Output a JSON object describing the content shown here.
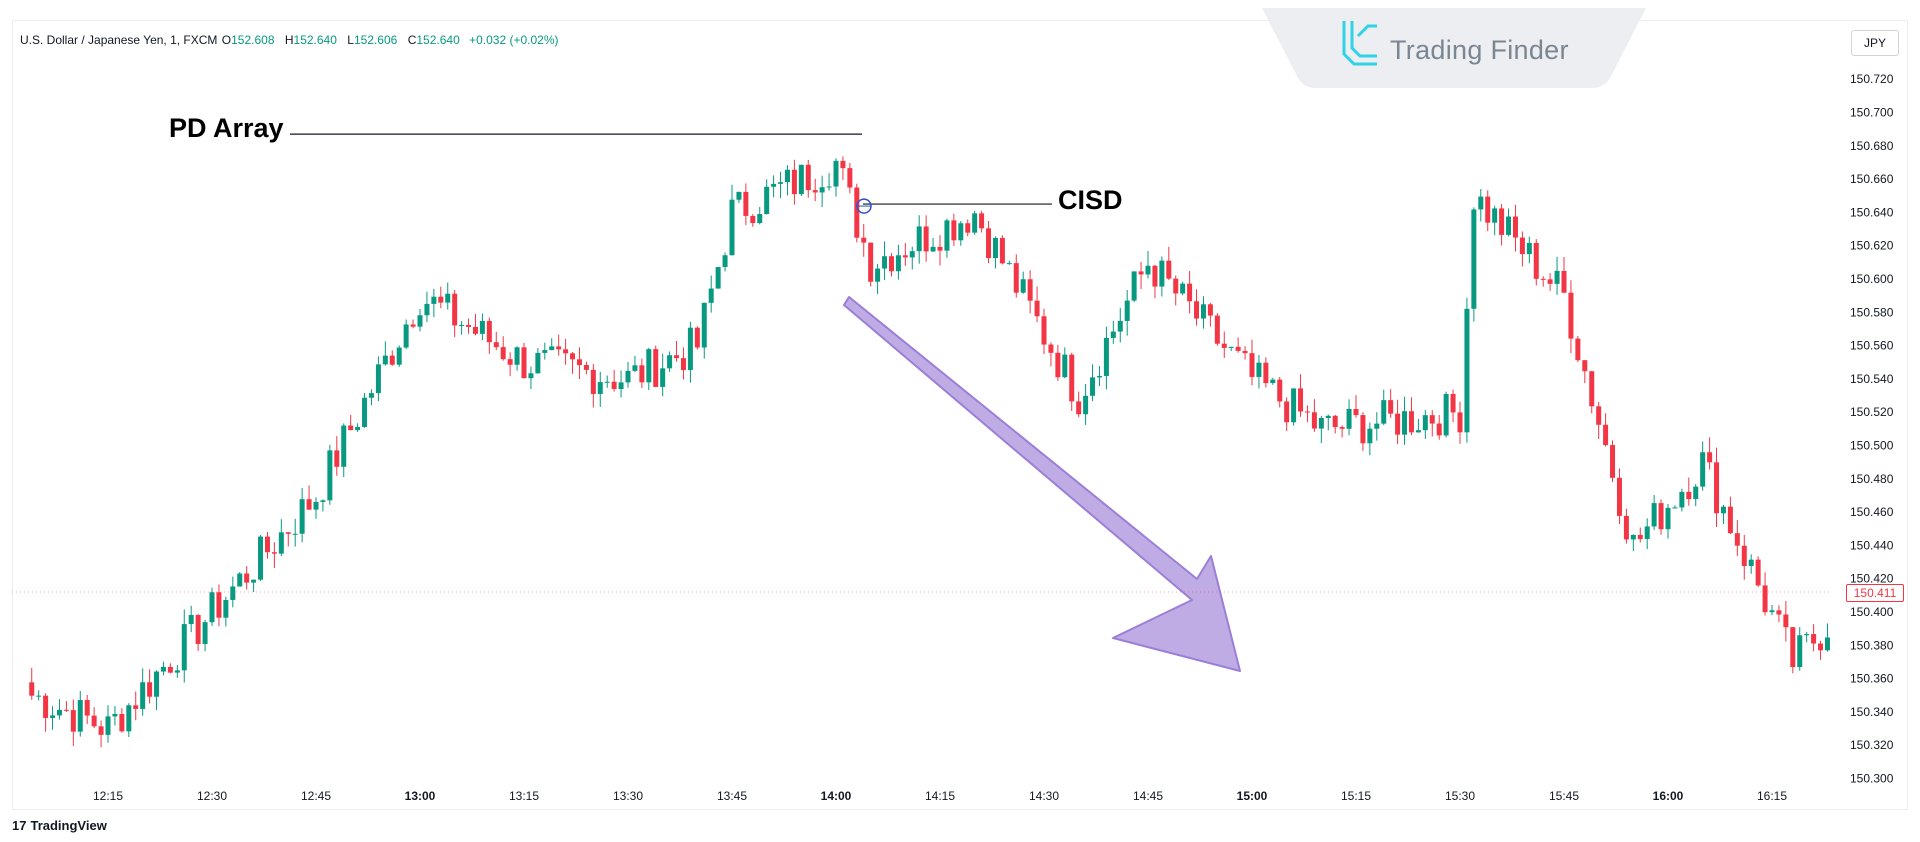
{
  "header": {
    "symbol": "U.S. Dollar / Japanese Yen, 1, FXCM",
    "open_label": "O",
    "open": "152.608",
    "high_label": "H",
    "high": "152.640",
    "low_label": "L",
    "low": "152.606",
    "close_label": "C",
    "close": "152.640",
    "change": "+0.032 (+0.02%)"
  },
  "watermark": {
    "text": "Trading Finder"
  },
  "currency": "JPY",
  "last_price": "150.411",
  "footer": {
    "brand": "TradingView",
    "mark": "17"
  },
  "annotations": {
    "pd_array": "PD Array",
    "cisd": "CISD"
  },
  "colors": {
    "up": "#089981",
    "down": "#f23645",
    "arrow": "#b59ee0",
    "arrow_stroke": "#9b7fd6"
  },
  "chart_data": {
    "type": "candlestick",
    "title": "",
    "ylim": [
      150.28,
      150.73
    ],
    "y_ticks": [
      "150.720",
      "150.700",
      "150.680",
      "150.660",
      "150.640",
      "150.620",
      "150.600",
      "150.580",
      "150.560",
      "150.540",
      "150.520",
      "150.500",
      "150.480",
      "150.460",
      "150.440",
      "150.420",
      "150.400",
      "150.380",
      "150.360",
      "150.340",
      "150.320",
      "150.300"
    ],
    "x_ticks": [
      "12:15",
      "12:30",
      "12:45",
      "13:00",
      "13:15",
      "13:30",
      "13:45",
      "14:00",
      "14:15",
      "14:30",
      "14:45",
      "15:00",
      "15:15",
      "15:30",
      "15:45",
      "16:00",
      "16:15"
    ],
    "x_ticks_bold": [
      "13:00",
      "14:00",
      "15:00",
      "16:00"
    ],
    "segments": [
      {
        "from": "start",
        "to": "12:15",
        "start": 150.35,
        "end": 150.33
      },
      {
        "from": "12:15",
        "to": "12:45",
        "start": 150.33,
        "end": 150.47
      },
      {
        "from": "12:45",
        "to": "13:00",
        "start": 150.47,
        "end": 150.59
      },
      {
        "from": "13:00",
        "to": "13:15",
        "start": 150.59,
        "end": 150.55
      },
      {
        "from": "13:15",
        "to": "13:30",
        "start": 150.55,
        "end": 150.54
      },
      {
        "from": "13:30",
        "to": "13:40",
        "start": 150.54,
        "end": 150.56
      },
      {
        "from": "13:40",
        "to": "13:45",
        "start": 150.56,
        "end": 150.64
      },
      {
        "from": "13:45",
        "to": "14:00",
        "start": 150.64,
        "end": 150.67
      },
      {
        "from": "14:00",
        "to": "14:05",
        "start": 150.67,
        "end": 150.61
      },
      {
        "from": "14:05",
        "to": "14:20",
        "start": 150.61,
        "end": 150.64
      },
      {
        "from": "14:20",
        "to": "14:35",
        "start": 150.64,
        "end": 150.53
      },
      {
        "from": "14:35",
        "to": "14:45",
        "start": 150.53,
        "end": 150.61
      },
      {
        "from": "14:45",
        "to": "15:00",
        "start": 150.61,
        "end": 150.54
      },
      {
        "from": "15:00",
        "to": "15:10",
        "start": 150.54,
        "end": 150.51
      },
      {
        "from": "15:10",
        "to": "15:30",
        "start": 150.51,
        "end": 150.52
      },
      {
        "from": "15:30",
        "to": "15:32",
        "start": 150.52,
        "end": 150.65
      },
      {
        "from": "15:32",
        "to": "15:45",
        "start": 150.65,
        "end": 150.59
      },
      {
        "from": "15:45",
        "to": "15:55",
        "start": 150.59,
        "end": 150.44
      },
      {
        "from": "15:55",
        "to": "16:05",
        "start": 150.44,
        "end": 150.49
      },
      {
        "from": "16:05",
        "to": "16:18",
        "start": 150.49,
        "end": 150.37
      },
      {
        "from": "16:18",
        "to": "end",
        "start": 150.37,
        "end": 150.41
      }
    ],
    "pd_array_level": 150.687,
    "cisd_level": 150.645
  }
}
